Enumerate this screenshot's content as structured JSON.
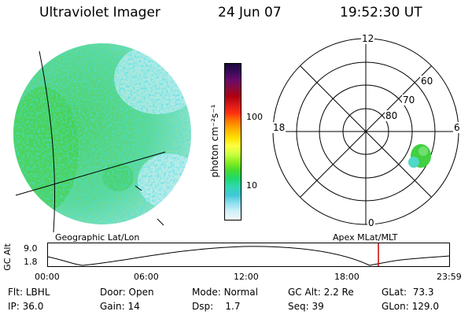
{
  "header": {
    "title": "Ultraviolet Imager",
    "date": "24 Jun 07",
    "time": "19:52:30 UT"
  },
  "colorbar": {
    "unit_label": "photon cm⁻²s⁻¹",
    "ticks": [
      "100",
      "10"
    ],
    "colors": [
      "#1a0a3a",
      "#3a0a5a",
      "#6a0a6a",
      "#8a0a3a",
      "#b00010",
      "#d81818",
      "#ff3010",
      "#ff7a00",
      "#ffb000",
      "#ffe000",
      "#ffff40",
      "#ccff40",
      "#88ee20",
      "#44dd30",
      "#20d870",
      "#30d8b0",
      "#40c8d8",
      "#90e0f0",
      "#d0f0f8",
      "#eef8fc"
    ]
  },
  "polar": {
    "labels": {
      "top": "12",
      "bottom": "0",
      "left": "18",
      "right": "6",
      "r60": "60",
      "r70": "70",
      "r80": "80"
    }
  },
  "timeline": {
    "left_label": "Geographic Lat/Lon",
    "right_label": "Apex  MLat/MLT",
    "ylabel": "GC Alt",
    "y_ticks": [
      "9.0",
      "1.8"
    ],
    "x_ticks": [
      "00:00",
      "06:00",
      "12:00",
      "18:00",
      "23:59"
    ],
    "marker_time": "19:52:30"
  },
  "info": {
    "row1": [
      {
        "label": "Flt:",
        "value": "LBHL"
      },
      {
        "label": "Door:",
        "value": "Open"
      },
      {
        "label": "Mode:",
        "value": "Normal"
      },
      {
        "label": "GC Alt:",
        "value": "2.2 Re"
      },
      {
        "label": "GLat:",
        "value": "73.3"
      }
    ],
    "row2": [
      {
        "label": "IP:",
        "value": "36.0"
      },
      {
        "label": "Gain:",
        "value": "14"
      },
      {
        "label": "Dsp:",
        "value": "1.7"
      },
      {
        "label": "Seq:",
        "value": "39"
      },
      {
        "label": "GLon:",
        "value": "129.0"
      }
    ]
  },
  "colors": {
    "marker": "#cc0000",
    "disk_base": "#88e4a0"
  }
}
